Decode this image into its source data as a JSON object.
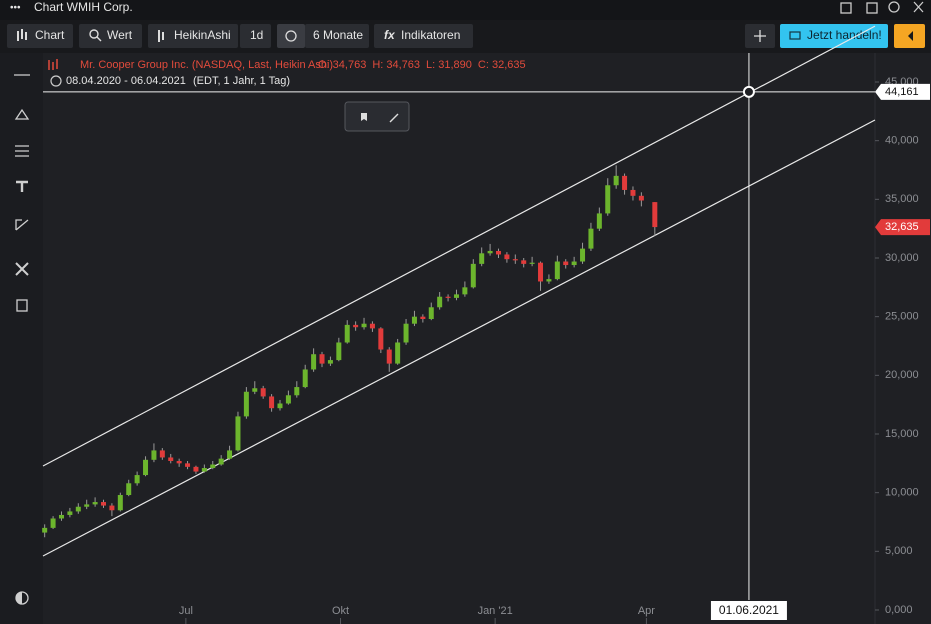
{
  "window": {
    "title": "Chart WMIH Corp."
  },
  "toolbar": {
    "chart": "Chart",
    "wert": "Wert",
    "chart_type": "HeikinAshi",
    "interval": "1d",
    "range": "6 Monate",
    "indicators": "Indikatoren",
    "trade": "Jetzt handeln!"
  },
  "chart_data": {
    "type": "candlestick",
    "title": "Mr. Cooper Group Inc. (NASDAQ, Last, Heikin Ashi)",
    "ohlc": [
      {
        "value": 34763,
        "label": "O: 34,763"
      },
      {
        "value": 34763,
        "label": "H: 34,763"
      },
      {
        "value": 31890,
        "label": "L: 31,890"
      },
      {
        "value": 32635,
        "label": "C: 32,635"
      }
    ],
    "period": "08.04.2020 - 06.04.2021",
    "period_note": "(EDT, 1 Jahr, 1 Tag)",
    "up_color": "#6cb52d",
    "down_color": "#e23b3b",
    "x": [
      "2020-04-08",
      "2020-04-13",
      "2020-04-18",
      "2020-04-23",
      "2020-04-28",
      "2020-05-03",
      "2020-05-08",
      "2020-05-13",
      "2020-05-18",
      "2020-05-23",
      "2020-05-28",
      "2020-06-02",
      "2020-06-07",
      "2020-06-12",
      "2020-06-17",
      "2020-06-22",
      "2020-06-27",
      "2020-07-02",
      "2020-07-07",
      "2020-07-12",
      "2020-07-17",
      "2020-07-22",
      "2020-07-27",
      "2020-08-01",
      "2020-08-06",
      "2020-08-11",
      "2020-08-16",
      "2020-08-21",
      "2020-08-26",
      "2020-08-31",
      "2020-09-05",
      "2020-09-10",
      "2020-09-15",
      "2020-09-20",
      "2020-09-25",
      "2020-09-30",
      "2020-10-05",
      "2020-10-10",
      "2020-10-15",
      "2020-10-20",
      "2020-10-25",
      "2020-10-30",
      "2020-11-04",
      "2020-11-09",
      "2020-11-14",
      "2020-11-19",
      "2020-11-24",
      "2020-11-29",
      "2020-12-04",
      "2020-12-09",
      "2020-12-14",
      "2020-12-19",
      "2020-12-24",
      "2020-12-29",
      "2021-01-03",
      "2021-01-08",
      "2021-01-13",
      "2021-01-18",
      "2021-01-23",
      "2021-01-28",
      "2021-02-02",
      "2021-02-07",
      "2021-02-12",
      "2021-02-17",
      "2021-02-22",
      "2021-02-27",
      "2021-03-04",
      "2021-03-09",
      "2021-03-14",
      "2021-03-19",
      "2021-03-24",
      "2021-03-29",
      "2021-04-06"
    ],
    "candles": [
      [
        6600,
        7300,
        6200,
        7000
      ],
      [
        7000,
        8000,
        6900,
        7800
      ],
      [
        7800,
        8400,
        7600,
        8100
      ],
      [
        8100,
        8700,
        7900,
        8400
      ],
      [
        8400,
        9100,
        8200,
        8800
      ],
      [
        8800,
        9400,
        8600,
        9000
      ],
      [
        9000,
        9600,
        8800,
        9200
      ],
      [
        9200,
        9400,
        8700,
        8900
      ],
      [
        8900,
        9100,
        8000,
        8500
      ],
      [
        8500,
        10000,
        8400,
        9800
      ],
      [
        9800,
        11100,
        9700,
        10800
      ],
      [
        10800,
        11800,
        10600,
        11500
      ],
      [
        11500,
        13100,
        11400,
        12800
      ],
      [
        12800,
        14200,
        12600,
        13600
      ],
      [
        13600,
        13800,
        12800,
        13000
      ],
      [
        13000,
        13300,
        12500,
        12700
      ],
      [
        12700,
        12900,
        12200,
        12500
      ],
      [
        12500,
        12700,
        12000,
        12200
      ],
      [
        12200,
        12300,
        11600,
        11800
      ],
      [
        11800,
        12400,
        11700,
        12100
      ],
      [
        12100,
        12700,
        12000,
        12400
      ],
      [
        12400,
        13200,
        12300,
        12900
      ],
      [
        12900,
        14000,
        12800,
        13600
      ],
      [
        13600,
        16900,
        13500,
        16500
      ],
      [
        16500,
        19000,
        16300,
        18600
      ],
      [
        18600,
        19500,
        18400,
        18900
      ],
      [
        18900,
        19100,
        18000,
        18200
      ],
      [
        18200,
        18400,
        16900,
        17200
      ],
      [
        17200,
        17900,
        17000,
        17600
      ],
      [
        17600,
        18700,
        17500,
        18300
      ],
      [
        18300,
        19500,
        18100,
        19000
      ],
      [
        19000,
        20900,
        18900,
        20500
      ],
      [
        20500,
        22300,
        20300,
        21800
      ],
      [
        21800,
        22000,
        20700,
        21000
      ],
      [
        21000,
        21600,
        20800,
        21300
      ],
      [
        21300,
        23200,
        21200,
        22800
      ],
      [
        22800,
        24700,
        22700,
        24300
      ],
      [
        24300,
        24600,
        23800,
        24100
      ],
      [
        24100,
        24900,
        23900,
        24400
      ],
      [
        24400,
        24600,
        23700,
        24000
      ],
      [
        24000,
        24100,
        21900,
        22200
      ],
      [
        22200,
        22400,
        20300,
        21000
      ],
      [
        21000,
        23100,
        20900,
        22800
      ],
      [
        22800,
        24800,
        22600,
        24400
      ],
      [
        24400,
        25500,
        24200,
        25000
      ],
      [
        25000,
        25200,
        24500,
        24800
      ],
      [
        24800,
        26200,
        24700,
        25800
      ],
      [
        25800,
        27100,
        25600,
        26700
      ],
      [
        26700,
        26900,
        26300,
        26600
      ],
      [
        26600,
        27300,
        26400,
        26900
      ],
      [
        26900,
        28000,
        26700,
        27500
      ],
      [
        27500,
        29900,
        27400,
        29500
      ],
      [
        29500,
        30900,
        29300,
        30400
      ],
      [
        30400,
        31200,
        30200,
        30600
      ],
      [
        30600,
        30800,
        30000,
        30300
      ],
      [
        30300,
        30500,
        29600,
        29900
      ],
      [
        29900,
        30300,
        29500,
        29800
      ],
      [
        29800,
        30000,
        29200,
        29500
      ],
      [
        29500,
        30100,
        29300,
        29600
      ],
      [
        29600,
        29700,
        27200,
        28000
      ],
      [
        28000,
        28600,
        27800,
        28200
      ],
      [
        28200,
        30200,
        28100,
        29700
      ],
      [
        29700,
        29900,
        29100,
        29400
      ],
      [
        29400,
        30100,
        29200,
        29700
      ],
      [
        29700,
        31300,
        29500,
        30800
      ],
      [
        30800,
        33000,
        30600,
        32500
      ],
      [
        32500,
        34300,
        32300,
        33800
      ],
      [
        33800,
        36800,
        33600,
        36200
      ],
      [
        36200,
        37900,
        35900,
        37000
      ],
      [
        37000,
        37200,
        35400,
        35800
      ],
      [
        35800,
        36100,
        34900,
        35300
      ],
      [
        35300,
        35600,
        34400,
        34900
      ],
      [
        34763,
        34763,
        31890,
        32635
      ]
    ],
    "xlim": [
      "2020-04-07",
      "2021-08-15"
    ],
    "xticks": [
      {
        "value": "2020-07-01",
        "label": "Jul"
      },
      {
        "value": "2020-10-01",
        "label": "Okt"
      },
      {
        "value": "2021-01-01",
        "label": "Jan '21"
      },
      {
        "value": "2021-04-01",
        "label": "Apr"
      }
    ],
    "ylim": [
      0,
      45000
    ],
    "yticks": [
      {
        "value": 0,
        "label": "0,000"
      },
      {
        "value": 5000,
        "label": "5,000"
      },
      {
        "value": 10000,
        "label": "10,000"
      },
      {
        "value": 15000,
        "label": "15,000"
      },
      {
        "value": 20000,
        "label": "20,000"
      },
      {
        "value": 25000,
        "label": "25,000"
      },
      {
        "value": 30000,
        "label": "30,000"
      },
      {
        "value": 35000,
        "label": "35,000"
      },
      {
        "value": 40000,
        "label": "40,000"
      },
      {
        "value": 45000,
        "label": "45,000"
      }
    ],
    "last": {
      "value": 32635,
      "label": "32,635"
    },
    "crosshair": {
      "x": {
        "value": "2021-06-01",
        "label": "01.06.2021"
      },
      "y": {
        "value": 44161,
        "label": "44,161"
      }
    },
    "trendlines": [
      {
        "x": [
          "2020-04-07",
          "2021-08-15"
        ],
        "y": [
          12270,
          49760
        ]
      },
      {
        "x": [
          "2020-04-07",
          "2021-08-15"
        ],
        "y": [
          4600,
          41760
        ]
      }
    ]
  }
}
